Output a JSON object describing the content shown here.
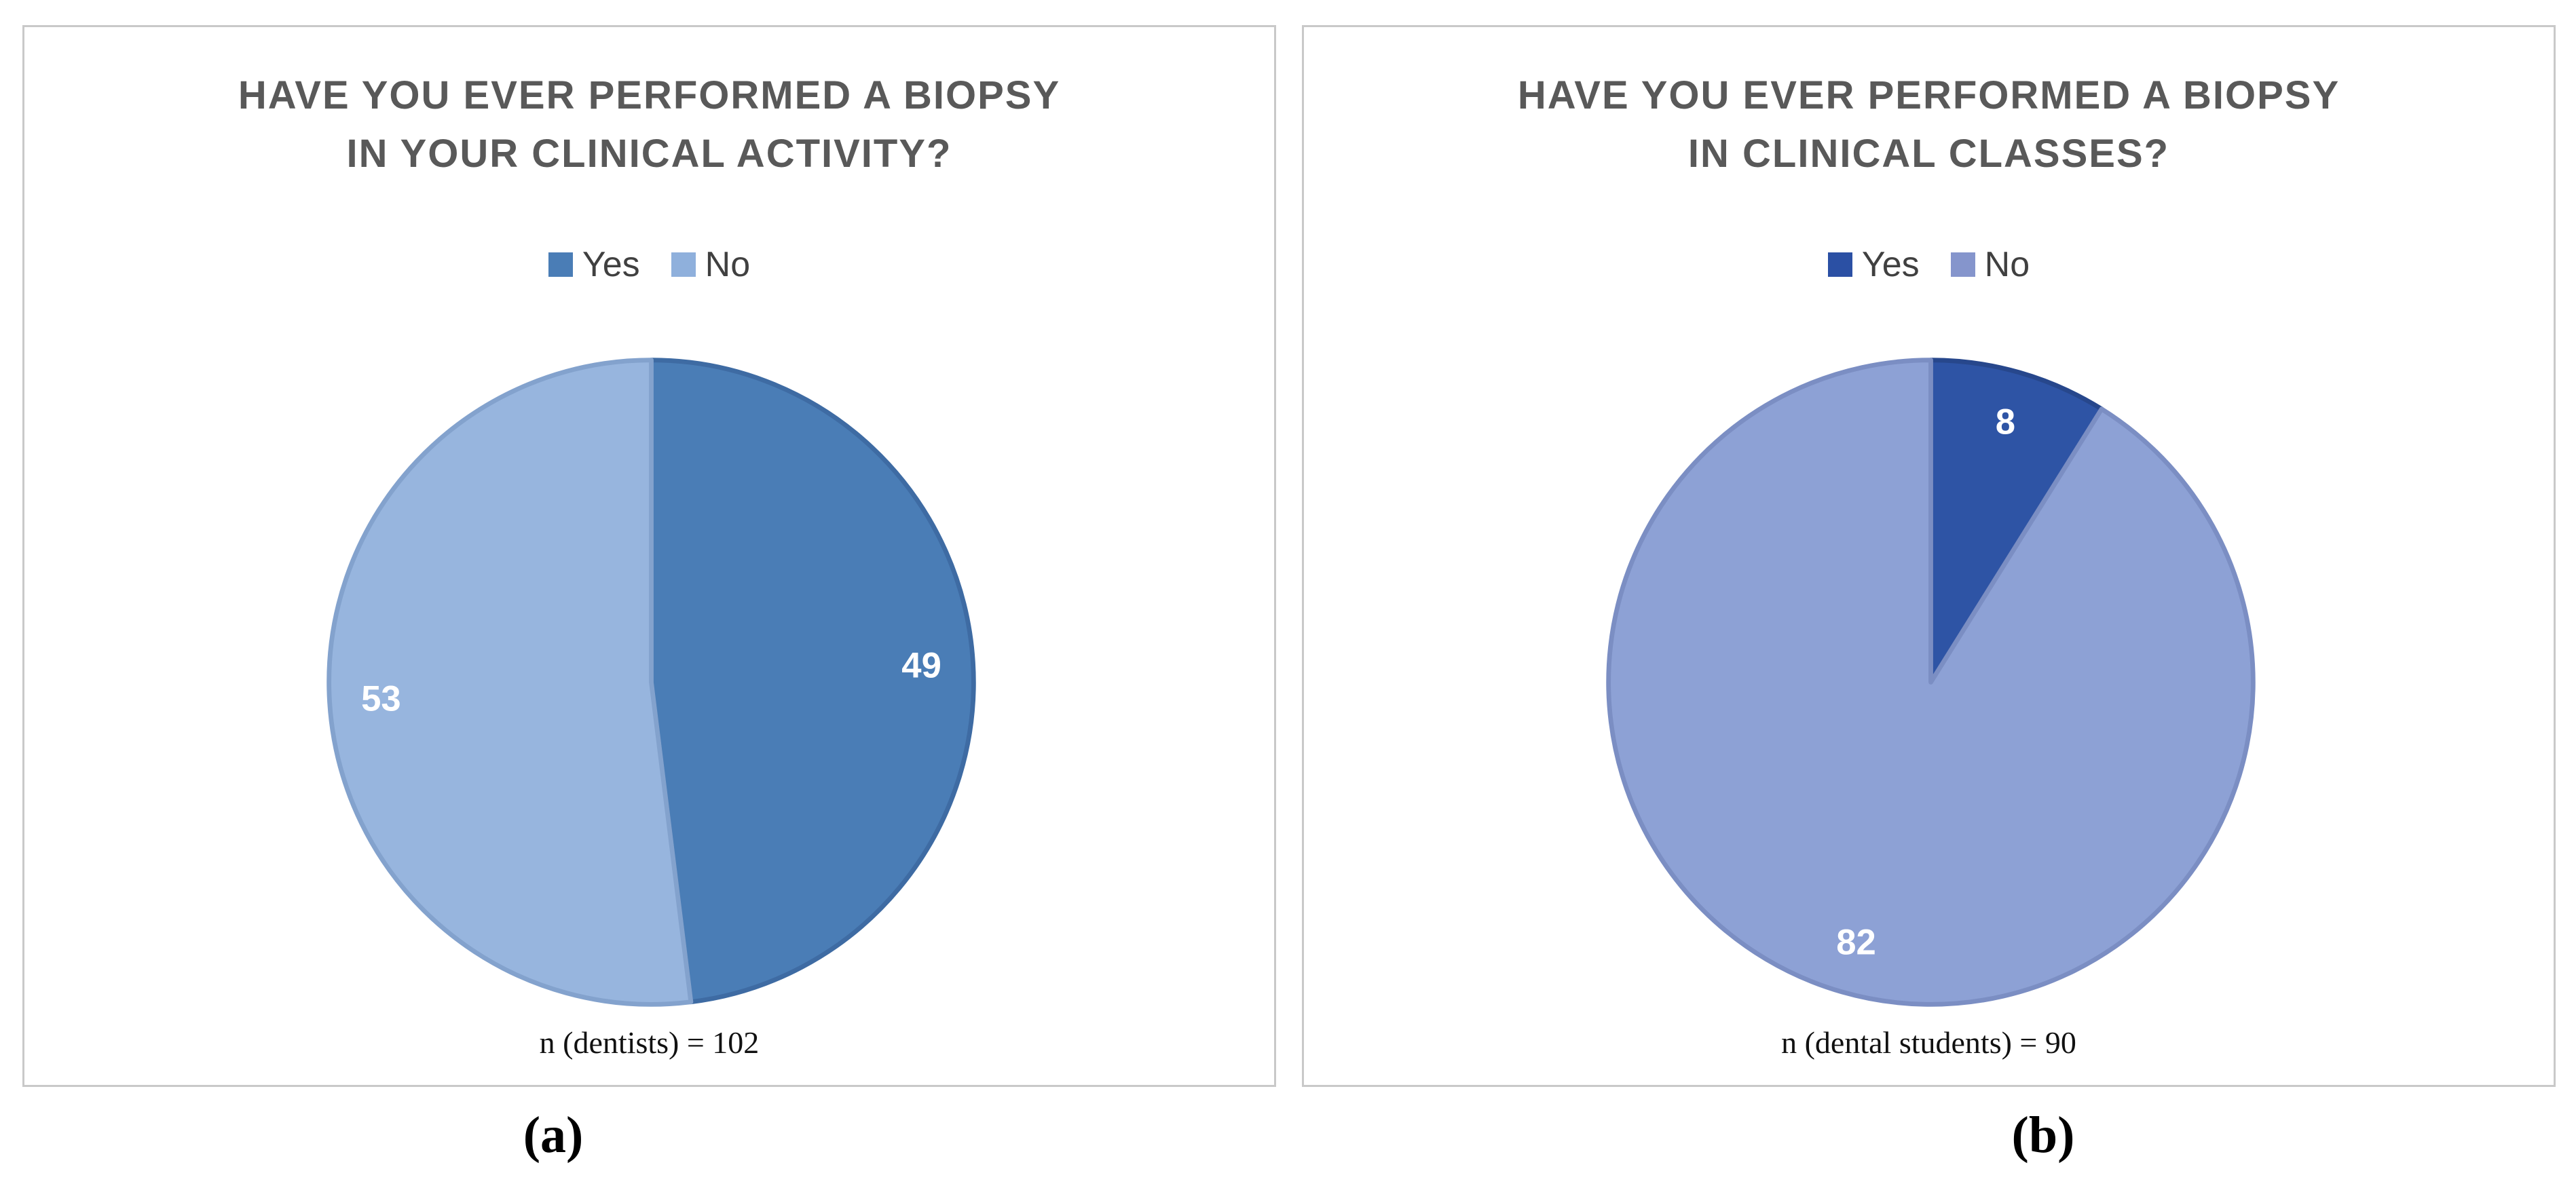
{
  "figure": {
    "panels": [
      {
        "title_line1": "HAVE YOU EVER PERFORMED A BIOPSY",
        "title_line2": "IN YOUR CLINICAL ACTIVITY?",
        "caption": "n (dentists) = 102",
        "panel_label": "(a)"
      },
      {
        "title_line1": "HAVE YOU EVER PERFORMED A BIOPSY",
        "title_line2": "IN CLINICAL CLASSES?",
        "caption": "n (dental students) = 90",
        "panel_label": "(b)"
      }
    ],
    "title_color": "#595959",
    "panel_border_color": "#c9c9c9"
  },
  "chart_data": [
    {
      "type": "pie",
      "title": "HAVE YOU EVER PERFORMED A BIOPSY IN YOUR CLINICAL ACTIVITY?",
      "categories": [
        "Yes",
        "No"
      ],
      "values": [
        49,
        53
      ],
      "total": 102,
      "colors": [
        "#4a7db6",
        "#97b5de"
      ],
      "stroke_colors": [
        "#3e6ba3",
        "#83a2cd"
      ],
      "legend_colors": [
        "#4a7db6",
        "#8fb0dc"
      ],
      "data_label_color": "#ffffff",
      "note": "n (dentists) = 102",
      "start_angle_deg": 0,
      "direction": "clockwise",
      "legend_position": "top"
    },
    {
      "type": "pie",
      "title": "HAVE YOU EVER PERFORMED A BIOPSY IN CLINICAL CLASSES?",
      "categories": [
        "Yes",
        "No"
      ],
      "values": [
        8,
        82
      ],
      "total": 90,
      "colors": [
        "#2e54a5",
        "#8da1d5"
      ],
      "stroke_colors": [
        "#27478c",
        "#7b8ec3"
      ],
      "legend_colors": [
        "#2b50a4",
        "#8595cc"
      ],
      "data_label_color": "#ffffff",
      "note": "n (dental students) = 90",
      "start_angle_deg": 0,
      "direction": "clockwise",
      "legend_position": "top"
    }
  ]
}
